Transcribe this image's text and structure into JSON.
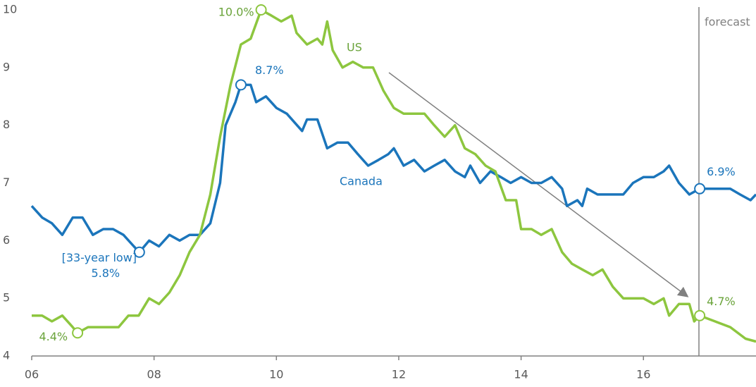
{
  "chart_data": {
    "type": "line",
    "xlim": [
      2006,
      2017.84
    ],
    "xticks": [
      {
        "value": 2006,
        "label": "06"
      },
      {
        "value": 2008,
        "label": "08"
      },
      {
        "value": 2010,
        "label": "10"
      },
      {
        "value": 2012,
        "label": "12"
      },
      {
        "value": 2014,
        "label": "14"
      },
      {
        "value": 2016,
        "label": "16"
      }
    ],
    "ylim": [
      4,
      10
    ],
    "yticks": [
      4,
      5,
      6,
      7,
      8,
      9,
      10
    ],
    "grid": false,
    "annotations": [
      "forecast",
      "[33-year low]"
    ],
    "series": [
      {
        "name": "Canada",
        "color": "#1b75bb",
        "x": [
          2006.0,
          2006.17,
          2006.33,
          2006.5,
          2006.67,
          2006.83,
          2007.0,
          2007.17,
          2007.33,
          2007.5,
          2007.67,
          2007.76,
          2007.92,
          2008.08,
          2008.25,
          2008.42,
          2008.58,
          2008.75,
          2008.92,
          2009.08,
          2009.17,
          2009.33,
          2009.42,
          2009.58,
          2009.67,
          2009.83,
          2010.0,
          2010.17,
          2010.42,
          2010.5,
          2010.67,
          2010.83,
          2011.0,
          2011.17,
          2011.33,
          2011.5,
          2011.67,
          2011.83,
          2011.92,
          2012.08,
          2012.25,
          2012.42,
          2012.58,
          2012.75,
          2012.92,
          2013.08,
          2013.17,
          2013.33,
          2013.5,
          2013.67,
          2013.83,
          2014.0,
          2014.17,
          2014.33,
          2014.5,
          2014.67,
          2014.75,
          2014.92,
          2015.0,
          2015.08,
          2015.25,
          2015.5,
          2015.67,
          2015.83,
          2016.0,
          2016.17,
          2016.33,
          2016.42,
          2016.58,
          2016.75,
          2016.92,
          2017.08,
          2017.25,
          2017.42,
          2017.58,
          2017.75,
          2017.84
        ],
        "values": [
          6.6,
          6.4,
          6.3,
          6.1,
          6.4,
          6.4,
          6.1,
          6.2,
          6.2,
          6.1,
          5.9,
          5.8,
          6.0,
          5.9,
          6.1,
          6.0,
          6.1,
          6.1,
          6.3,
          7.0,
          8.0,
          8.4,
          8.7,
          8.7,
          8.4,
          8.5,
          8.3,
          8.2,
          7.9,
          8.1,
          8.1,
          7.6,
          7.7,
          7.7,
          7.5,
          7.3,
          7.4,
          7.5,
          7.6,
          7.3,
          7.4,
          7.2,
          7.3,
          7.4,
          7.2,
          7.1,
          7.3,
          7.0,
          7.2,
          7.1,
          7.0,
          7.1,
          7.0,
          7.0,
          7.1,
          6.9,
          6.6,
          6.7,
          6.6,
          6.9,
          6.8,
          6.8,
          6.8,
          7.0,
          7.1,
          7.1,
          7.2,
          7.3,
          7.0,
          6.8,
          6.9,
          6.9,
          6.9,
          6.9,
          6.8,
          6.7,
          6.8
        ],
        "value_labels": {
          "22": "8.7%",
          "11": "5.8%",
          "70": "6.9%"
        }
      },
      {
        "name": "US",
        "color": "#8dc63f",
        "x": [
          2006.0,
          2006.17,
          2006.33,
          2006.5,
          2006.67,
          2006.75,
          2006.92,
          2007.08,
          2007.25,
          2007.42,
          2007.58,
          2007.75,
          2007.92,
          2008.08,
          2008.25,
          2008.42,
          2008.58,
          2008.75,
          2008.92,
          2009.08,
          2009.25,
          2009.42,
          2009.58,
          2009.75,
          2009.92,
          2010.08,
          2010.25,
          2010.33,
          2010.5,
          2010.67,
          2010.75,
          2010.83,
          2010.92,
          2011.08,
          2011.25,
          2011.42,
          2011.58,
          2011.75,
          2011.92,
          2012.08,
          2012.25,
          2012.42,
          2012.58,
          2012.75,
          2012.92,
          2013.08,
          2013.25,
          2013.42,
          2013.58,
          2013.75,
          2013.92,
          2014.0,
          2014.17,
          2014.33,
          2014.5,
          2014.67,
          2014.83,
          2015.0,
          2015.17,
          2015.33,
          2015.5,
          2015.67,
          2015.83,
          2016.0,
          2016.17,
          2016.33,
          2016.42,
          2016.58,
          2016.75,
          2016.83,
          2016.92,
          2017.17,
          2017.42,
          2017.67,
          2017.84
        ],
        "values": [
          4.7,
          4.7,
          4.6,
          4.7,
          4.5,
          4.4,
          4.5,
          4.5,
          4.5,
          4.5,
          4.7,
          4.7,
          5.0,
          4.9,
          5.1,
          5.4,
          5.8,
          6.1,
          6.8,
          7.8,
          8.7,
          9.4,
          9.5,
          10.0,
          9.9,
          9.8,
          9.9,
          9.6,
          9.4,
          9.5,
          9.4,
          9.8,
          9.3,
          9.0,
          9.1,
          9.0,
          9.0,
          8.6,
          8.3,
          8.2,
          8.2,
          8.2,
          8.0,
          7.8,
          8.0,
          7.6,
          7.5,
          7.3,
          7.2,
          6.7,
          6.7,
          6.2,
          6.2,
          6.1,
          6.2,
          5.8,
          5.6,
          5.5,
          5.4,
          5.5,
          5.2,
          5.0,
          5.0,
          5.0,
          4.9,
          5.0,
          4.7,
          4.9,
          4.9,
          4.6,
          4.7,
          4.6,
          4.5,
          4.3,
          4.25
        ],
        "value_labels": {
          "23": "10.0%",
          "5": "4.4%",
          "70": "4.7%"
        }
      }
    ]
  }
}
